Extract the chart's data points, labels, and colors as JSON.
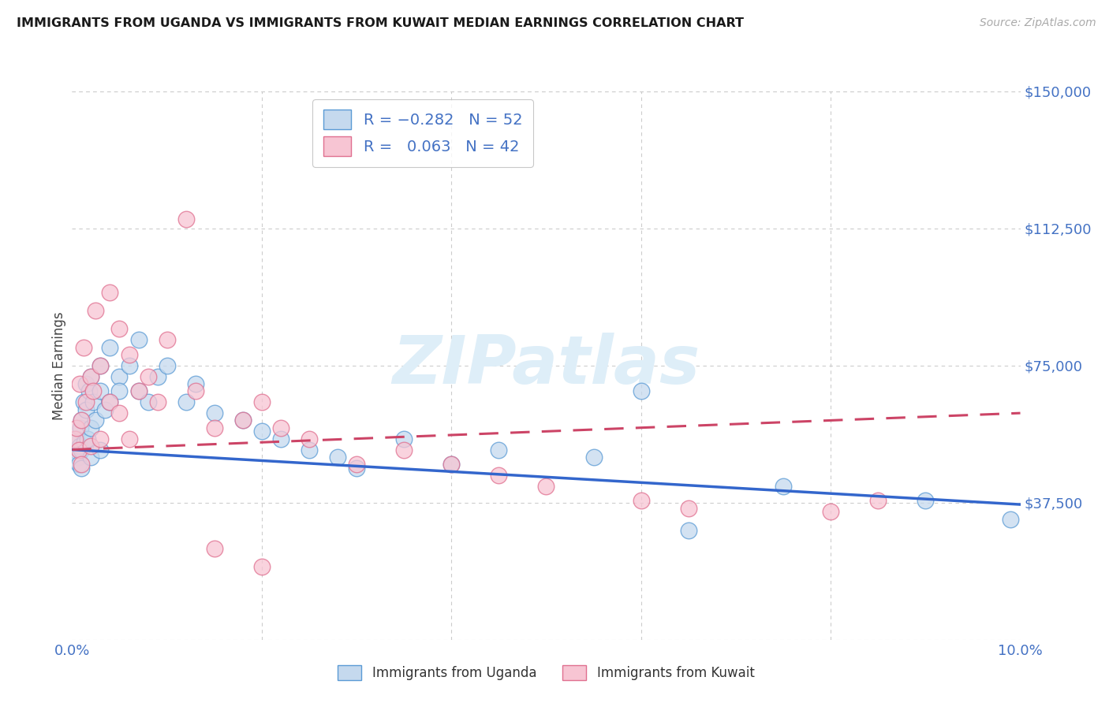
{
  "title": "IMMIGRANTS FROM UGANDA VS IMMIGRANTS FROM KUWAIT MEDIAN EARNINGS CORRELATION CHART",
  "source": "Source: ZipAtlas.com",
  "ylabel": "Median Earnings",
  "x_min": 0.0,
  "x_max": 0.1,
  "y_min": 0,
  "y_max": 150000,
  "y_ticks": [
    0,
    37500,
    75000,
    112500,
    150000
  ],
  "y_tick_labels_right": [
    "",
    "$37,500",
    "$75,000",
    "$112,500",
    "$150,000"
  ],
  "x_ticks": [
    0.0,
    0.02,
    0.04,
    0.06,
    0.08,
    0.1
  ],
  "x_tick_labels": [
    "0.0%",
    "",
    "",
    "",
    "",
    "10.0%"
  ],
  "color_uganda_fill": "#c5d9ee",
  "color_uganda_edge": "#5b9bd5",
  "color_kuwait_fill": "#f7c5d3",
  "color_kuwait_edge": "#e07090",
  "color_uganda_line": "#3366cc",
  "color_kuwait_line": "#cc4466",
  "color_axis_text": "#4472c4",
  "color_grid": "#cccccc",
  "watermark": "ZIPatlas",
  "ug_trend_y0": 52000,
  "ug_trend_y1": 37000,
  "kw_trend_y0": 52000,
  "kw_trend_y1": 62000,
  "ug_x": [
    0.0003,
    0.0005,
    0.0006,
    0.0007,
    0.0008,
    0.0009,
    0.001,
    0.001,
    0.001,
    0.0012,
    0.0013,
    0.0015,
    0.0015,
    0.0016,
    0.0018,
    0.002,
    0.002,
    0.002,
    0.0022,
    0.0025,
    0.003,
    0.003,
    0.003,
    0.0035,
    0.004,
    0.004,
    0.005,
    0.005,
    0.006,
    0.007,
    0.007,
    0.008,
    0.009,
    0.01,
    0.012,
    0.013,
    0.015,
    0.018,
    0.02,
    0.022,
    0.025,
    0.028,
    0.03,
    0.035,
    0.04,
    0.045,
    0.055,
    0.06,
    0.065,
    0.075,
    0.09,
    0.099
  ],
  "ug_y": [
    52000,
    55000,
    50000,
    48000,
    53000,
    58000,
    47000,
    60000,
    52000,
    65000,
    54000,
    70000,
    63000,
    55000,
    68000,
    72000,
    58000,
    50000,
    65000,
    60000,
    75000,
    68000,
    52000,
    63000,
    80000,
    65000,
    72000,
    68000,
    75000,
    82000,
    68000,
    65000,
    72000,
    75000,
    65000,
    70000,
    62000,
    60000,
    57000,
    55000,
    52000,
    50000,
    47000,
    55000,
    48000,
    52000,
    50000,
    68000,
    30000,
    42000,
    38000,
    33000
  ],
  "kw_x": [
    0.0003,
    0.0005,
    0.0007,
    0.0008,
    0.001,
    0.001,
    0.0012,
    0.0015,
    0.002,
    0.002,
    0.0022,
    0.0025,
    0.003,
    0.003,
    0.004,
    0.004,
    0.005,
    0.005,
    0.006,
    0.006,
    0.007,
    0.008,
    0.009,
    0.01,
    0.012,
    0.013,
    0.015,
    0.018,
    0.02,
    0.022,
    0.025,
    0.03,
    0.035,
    0.04,
    0.045,
    0.05,
    0.06,
    0.065,
    0.08,
    0.085,
    0.015,
    0.02
  ],
  "kw_y": [
    55000,
    58000,
    52000,
    70000,
    60000,
    48000,
    80000,
    65000,
    72000,
    53000,
    68000,
    90000,
    75000,
    55000,
    95000,
    65000,
    85000,
    62000,
    78000,
    55000,
    68000,
    72000,
    65000,
    82000,
    115000,
    68000,
    58000,
    60000,
    65000,
    58000,
    55000,
    48000,
    52000,
    48000,
    45000,
    42000,
    38000,
    36000,
    35000,
    38000,
    25000,
    20000
  ]
}
